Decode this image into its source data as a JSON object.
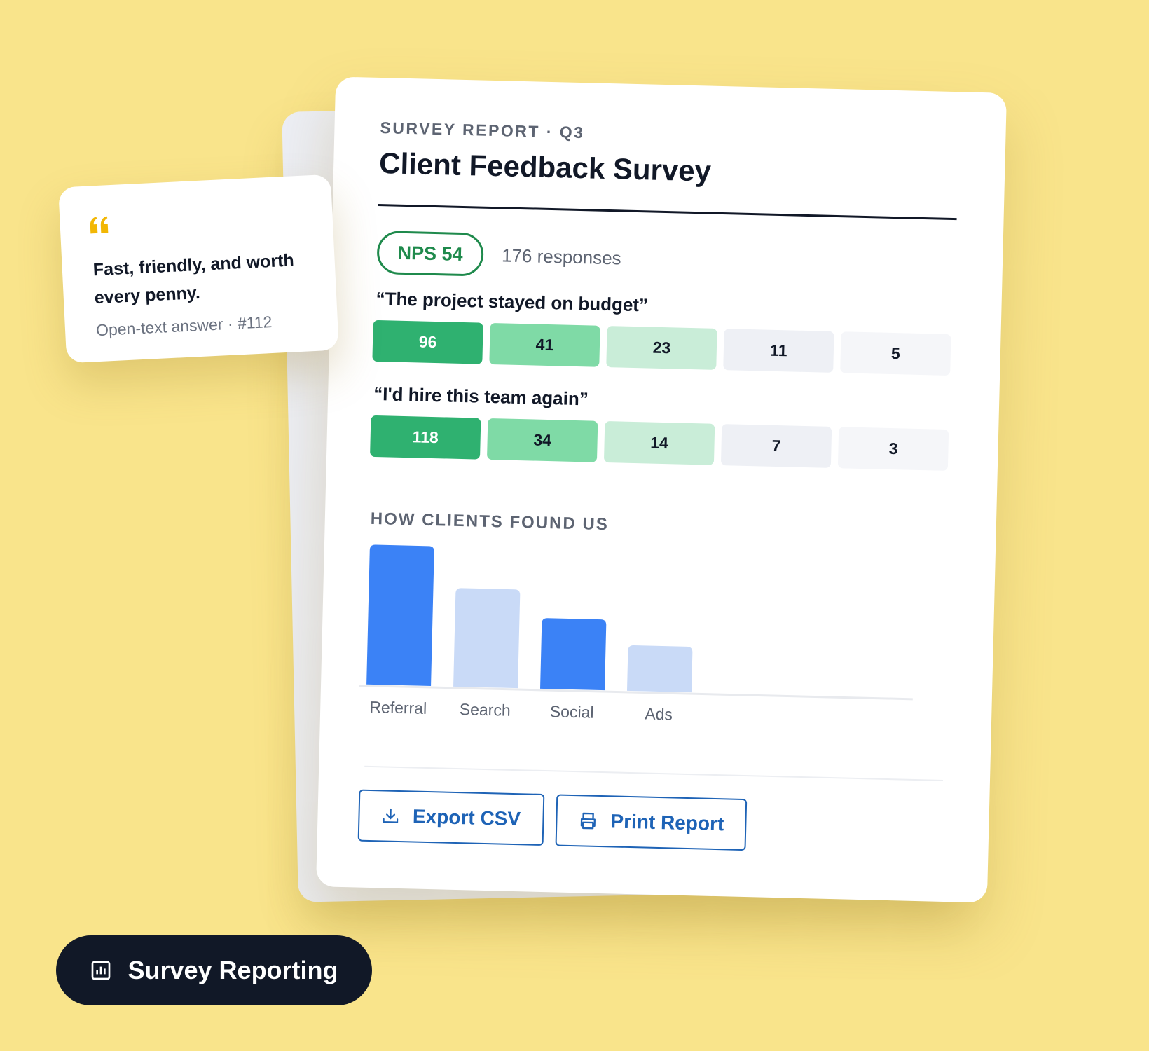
{
  "report": {
    "eyebrow": "SURVEY REPORT · Q3",
    "title": "Client Feedback Survey",
    "nps": "NPS 54",
    "responses": "176 responses",
    "questions": [
      {
        "text": "“The project stayed on budget”",
        "counts": [
          "96",
          "41",
          "23",
          "11",
          "5"
        ]
      },
      {
        "text": "“I'd hire this team again”",
        "counts": [
          "118",
          "34",
          "14",
          "7",
          "3"
        ]
      }
    ],
    "rating_colors": [
      "#2fb170",
      "#7fdaa6",
      "#c9edd8",
      "#eef0f5",
      "#f5f6f9"
    ],
    "buttons": [
      "Export CSV",
      "Print Report"
    ]
  },
  "chart_data": {
    "type": "bar",
    "title": "HOW CLIENTS FOUND US",
    "categories": [
      "Referral",
      "Search",
      "Social",
      "Ads"
    ],
    "values": [
      95,
      67,
      48,
      31
    ],
    "colors": [
      "#3b82f6",
      "#c9daf7",
      "#3b82f6",
      "#c9daf7"
    ],
    "ylim": [
      0,
      100
    ]
  },
  "quote": {
    "text": "Fast, friendly, and worth every penny.",
    "meta": "Open-text answer · #112"
  },
  "badge": "Survey Reporting"
}
